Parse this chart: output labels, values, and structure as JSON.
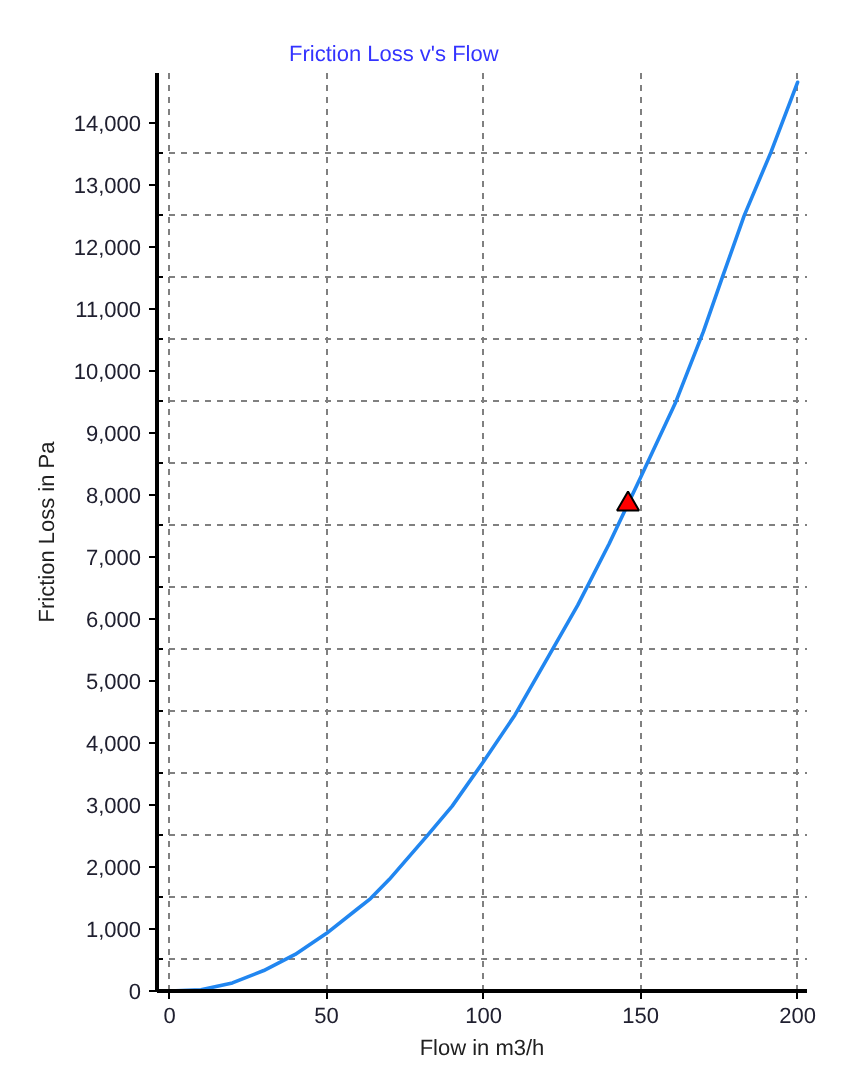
{
  "chart_data": {
    "type": "line",
    "title": "Friction Loss v's Flow",
    "xlabel": "Flow in m3/h",
    "ylabel": "Friction Loss in Pa",
    "xlim": [
      -4,
      203
    ],
    "ylim": [
      0,
      14800
    ],
    "xticks": [
      0,
      50,
      100,
      150,
      200
    ],
    "yticks": [
      0,
      {
        "value": 500,
        "label": null
      },
      {
        "value": 1000,
        "label": "1,000"
      },
      {
        "value": 1500,
        "label": null
      },
      {
        "value": 2000,
        "label": "2,000"
      },
      {
        "value": 2500,
        "label": null
      },
      {
        "value": 3000,
        "label": "3,000"
      },
      {
        "value": 3500,
        "label": null
      },
      {
        "value": 4000,
        "label": "4,000"
      },
      {
        "value": 4500,
        "label": null
      },
      {
        "value": 5000,
        "label": "5,000"
      },
      {
        "value": 5500,
        "label": null
      },
      {
        "value": 6000,
        "label": "6,000"
      },
      {
        "value": 6500,
        "label": null
      },
      {
        "value": 7000,
        "label": "7,000"
      },
      {
        "value": 7500,
        "label": null
      },
      {
        "value": 8000,
        "label": "8,000"
      },
      {
        "value": 8500,
        "label": null
      },
      {
        "value": 9000,
        "label": "9,000"
      },
      {
        "value": 9500,
        "label": null
      },
      {
        "value": 10000,
        "label": "10,000"
      },
      {
        "value": 10500,
        "label": null
      },
      {
        "value": 11000,
        "label": "11,000"
      },
      {
        "value": 11500,
        "label": null
      },
      {
        "value": 12000,
        "label": "12,000"
      },
      {
        "value": 12500,
        "label": null
      },
      {
        "value": 13000,
        "label": "13,000"
      },
      {
        "value": 13500,
        "label": null
      },
      {
        "value": 14000,
        "label": "14,000"
      }
    ],
    "grid": true,
    "series": [
      {
        "color": "#2186f0",
        "x": [
          0,
          10,
          20,
          30,
          40,
          50,
          60,
          64,
          70,
          82,
          90,
          100,
          110,
          123,
          130,
          140,
          150,
          161,
          170,
          176,
          183,
          191.5,
          200
        ],
        "values": [
          0,
          20,
          130,
          330,
          590,
          930,
          1330,
          1490,
          1800,
          2500,
          2980,
          3700,
          4450,
          5600,
          6220,
          7210,
          8280,
          9470,
          10630,
          11500,
          12500,
          13520,
          14650
        ]
      },
      {
        "type": "scatter",
        "marker": "triangle",
        "color": "#ff0000",
        "x": [
          146
        ],
        "values": [
          7850
        ]
      }
    ]
  }
}
